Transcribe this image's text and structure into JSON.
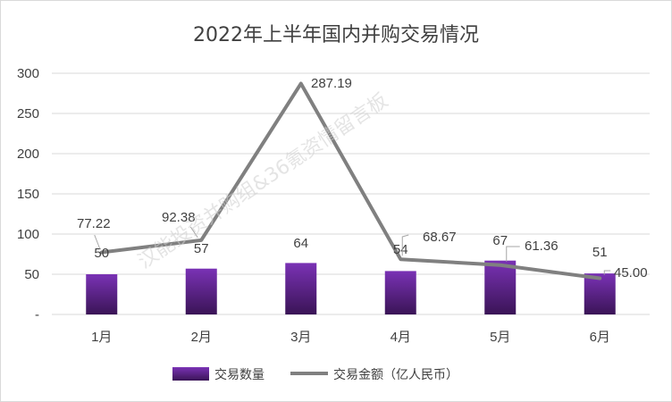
{
  "chart_data": {
    "type": "bar+line",
    "title": "2022年上半年国内并购交易情况",
    "categories": [
      "1月",
      "2月",
      "3月",
      "4月",
      "5月",
      "6月"
    ],
    "series": [
      {
        "name": "交易数量",
        "type": "bar",
        "values": [
          50,
          57,
          64,
          54,
          67,
          51
        ],
        "labels": [
          "50",
          "57",
          "64",
          "54",
          "67",
          "51"
        ],
        "color": "#7030a0"
      },
      {
        "name": "交易金额（亿人民币）",
        "type": "line",
        "values": [
          77.22,
          92.38,
          287.19,
          68.67,
          61.36,
          45.0
        ],
        "labels": [
          "77.22",
          "92.38",
          "287.19",
          "68.67",
          "61.36",
          "45.00"
        ],
        "color": "#808080"
      }
    ],
    "yaxis": {
      "min": 0,
      "max": 300,
      "ticks": [
        0,
        50,
        100,
        150,
        200,
        250,
        300
      ],
      "tick_labels": [
        "-",
        "50",
        "100",
        "150",
        "200",
        "250",
        "300"
      ]
    },
    "grid": true,
    "legend": "bottom"
  },
  "watermark": "汉能投资并购组&36氪资情留言板"
}
